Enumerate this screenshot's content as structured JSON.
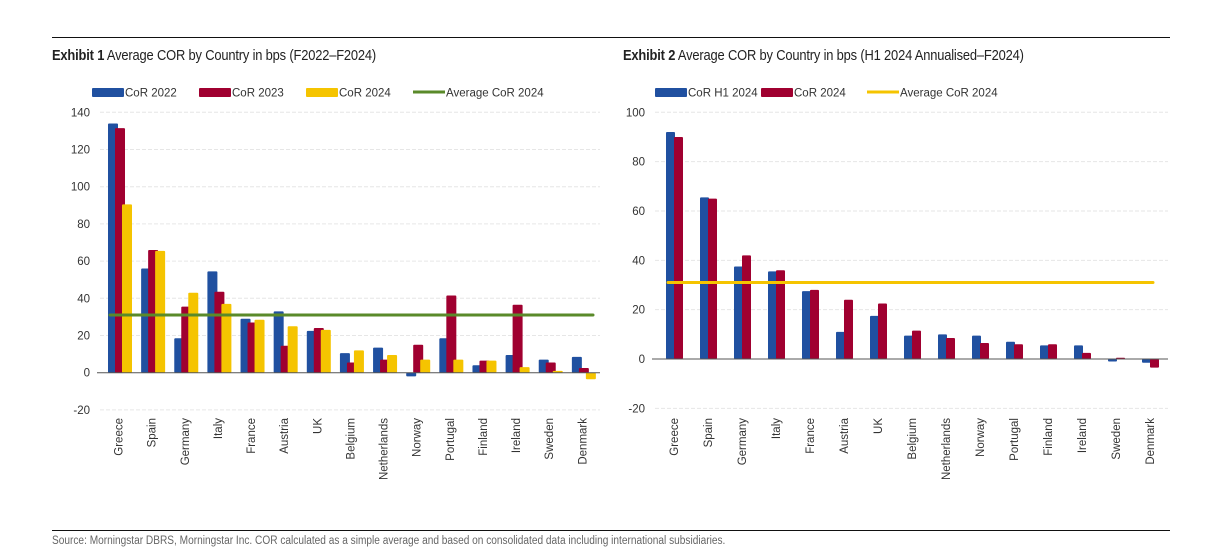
{
  "page": {
    "source_note": "Source: Morningstar DBRS, Morningstar Inc. COR calculated as a simple average and based on consolidated data including international subsidiaries."
  },
  "colors": {
    "blue": "#2050a0",
    "red": "#a00030",
    "yellow": "#f5c400",
    "green": "#5a8a2a",
    "grid": "#e6e6e6",
    "axis": "#555555"
  },
  "chart_data": [
    {
      "type": "bar",
      "exhibit_label": "Exhibit 1",
      "title": "Average COR by Country in bps (F2022–F2024)",
      "xlabel": "",
      "ylabel": "",
      "ylim": [
        -20,
        140
      ],
      "yticks": [
        -20,
        0,
        20,
        40,
        60,
        80,
        100,
        120,
        140
      ],
      "grid": true,
      "legend_position": "top",
      "categories": [
        "Greece",
        "Spain",
        "Germany",
        "Italy",
        "France",
        "Austria",
        "UK",
        "Belgium",
        "Netherlands",
        "Norway",
        "Portugal",
        "Finland",
        "Ireland",
        "Sweden",
        "Denmark"
      ],
      "series": [
        {
          "name": "CoR 2022",
          "color": "#2050a0",
          "values": [
            134,
            56,
            18.5,
            54.5,
            29,
            33,
            22.5,
            10.5,
            13.5,
            -2,
            18.5,
            4,
            9.5,
            7,
            8.5
          ]
        },
        {
          "name": "CoR 2023",
          "color": "#a00030",
          "values": [
            131.5,
            66,
            35.5,
            43.5,
            27,
            14.5,
            24,
            5.5,
            7,
            15,
            41.5,
            6.5,
            36.5,
            5.5,
            2.5
          ]
        },
        {
          "name": "CoR 2024",
          "color": "#f5c400",
          "values": [
            90.5,
            65.5,
            43,
            37,
            28.5,
            25,
            23,
            12,
            9.5,
            7,
            7,
            6.5,
            3,
            1,
            -3.5
          ]
        }
      ],
      "reference_lines": [
        {
          "name": "Average CoR 2024",
          "color": "#5a8a2a",
          "value": 31
        }
      ]
    },
    {
      "type": "bar",
      "exhibit_label": "Exhibit 2",
      "title": "Average COR by Country in bps (H1 2024 Annualised–F2024)",
      "xlabel": "",
      "ylabel": "",
      "ylim": [
        -20,
        100
      ],
      "yticks": [
        -20,
        0,
        20,
        40,
        60,
        80,
        100
      ],
      "grid": true,
      "legend_position": "top",
      "categories": [
        "Greece",
        "Spain",
        "Germany",
        "Italy",
        "France",
        "Austria",
        "UK",
        "Belgium",
        "Netherlands",
        "Norway",
        "Portugal",
        "Finland",
        "Ireland",
        "Sweden",
        "Denmark"
      ],
      "series": [
        {
          "name": "CoR H1 2024",
          "color": "#2050a0",
          "values": [
            92,
            65.5,
            37.5,
            35.5,
            27.5,
            11,
            17.5,
            9.5,
            10,
            9.5,
            7,
            5.5,
            5.5,
            -1,
            -1.5
          ]
        },
        {
          "name": "CoR 2024",
          "color": "#a00030",
          "values": [
            90,
            65,
            42,
            36,
            28,
            24,
            22.5,
            11.5,
            8.5,
            6.5,
            6,
            6,
            2.5,
            0.5,
            -3.5
          ]
        }
      ],
      "reference_lines": [
        {
          "name": "Average CoR 2024",
          "color": "#f5c400",
          "value": 31
        }
      ]
    }
  ]
}
